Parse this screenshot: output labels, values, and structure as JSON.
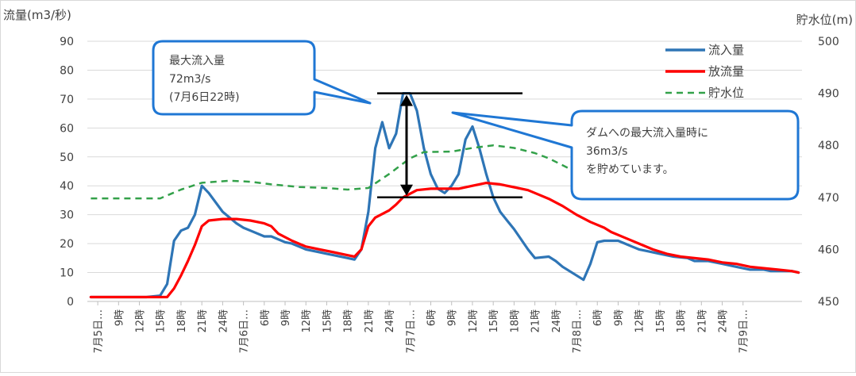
{
  "chart_data": {
    "type": "line",
    "y_left_label": "流量(m3/秒)",
    "y_right_label": "貯水位(m)",
    "y_left_range": [
      0,
      90
    ],
    "y_left_ticks": [
      "0",
      "10",
      "20",
      "30",
      "40",
      "50",
      "60",
      "70",
      "80",
      "90"
    ],
    "y_right_range": [
      450,
      500
    ],
    "y_right_ticks": [
      "450",
      "460",
      "470",
      "480",
      "490",
      "500"
    ],
    "x_tick_labels": [
      "7月5日…",
      "9時",
      "12時",
      "15時",
      "18時",
      "21時",
      "24時",
      "7月6日…",
      "6時",
      "9時",
      "12時",
      "15時",
      "18時",
      "21時",
      "24時",
      "7月7日…",
      "6時",
      "9時",
      "12時",
      "15時",
      "18時",
      "21時",
      "24時",
      "7月8日…",
      "6時",
      "9時",
      "12時",
      "15時",
      "18時",
      "21時",
      "24時",
      "7月9日…"
    ],
    "grid": true,
    "legend_position": "top-right",
    "series": [
      {
        "name": "流入量",
        "axis": "left",
        "color": "#2e75b6",
        "style": "solid",
        "points": [
          [
            0,
            1.5
          ],
          [
            8,
            1.5
          ],
          [
            10,
            2
          ],
          [
            11,
            6
          ],
          [
            12,
            21
          ],
          [
            13,
            24.5
          ],
          [
            14,
            25.5
          ],
          [
            15,
            30
          ],
          [
            16,
            40
          ],
          [
            17,
            37.5
          ],
          [
            19,
            31
          ],
          [
            21,
            27
          ],
          [
            22,
            25.5
          ],
          [
            23,
            24.5
          ],
          [
            25,
            22.5
          ],
          [
            26,
            22.5
          ],
          [
            28,
            20.5
          ],
          [
            29,
            20
          ],
          [
            31,
            18
          ],
          [
            33,
            17
          ],
          [
            34,
            16.5
          ],
          [
            35,
            16
          ],
          [
            37,
            15
          ],
          [
            38,
            14.5
          ],
          [
            39,
            18
          ],
          [
            40,
            31
          ],
          [
            41,
            53
          ],
          [
            42,
            62
          ],
          [
            43,
            53
          ],
          [
            44,
            58
          ],
          [
            45,
            72
          ],
          [
            46,
            72
          ],
          [
            47,
            66
          ],
          [
            48,
            53
          ],
          [
            49,
            44
          ],
          [
            50,
            39
          ],
          [
            51,
            37.5
          ],
          [
            52,
            40
          ],
          [
            53,
            44
          ],
          [
            54,
            56
          ],
          [
            55,
            60.5
          ],
          [
            56,
            53
          ],
          [
            57,
            44
          ],
          [
            58,
            36
          ],
          [
            59,
            31
          ],
          [
            60,
            28
          ],
          [
            61,
            25
          ],
          [
            63,
            18
          ],
          [
            64,
            15
          ],
          [
            66,
            15.5
          ],
          [
            67,
            14
          ],
          [
            68,
            12
          ],
          [
            70,
            9
          ],
          [
            71,
            7.5
          ],
          [
            72,
            13
          ],
          [
            73,
            20.5
          ],
          [
            74,
            21
          ],
          [
            76,
            21
          ],
          [
            77,
            20
          ],
          [
            78,
            19
          ],
          [
            79,
            18
          ],
          [
            80,
            17.5
          ],
          [
            82,
            16.5
          ],
          [
            84,
            15.5
          ],
          [
            86,
            15
          ],
          [
            87,
            14
          ],
          [
            89,
            14
          ],
          [
            91,
            13
          ],
          [
            93,
            12
          ],
          [
            95,
            11
          ],
          [
            97,
            11
          ],
          [
            98,
            10.5
          ],
          [
            101,
            10.5
          ],
          [
            102,
            10
          ]
        ]
      },
      {
        "name": "放流量",
        "axis": "left",
        "color": "#ff0000",
        "style": "solid",
        "points": [
          [
            0,
            1.5
          ],
          [
            11,
            1.5
          ],
          [
            12,
            4.5
          ],
          [
            13,
            9
          ],
          [
            14,
            14
          ],
          [
            15,
            19.5
          ],
          [
            16,
            26
          ],
          [
            17,
            28
          ],
          [
            19,
            28.5
          ],
          [
            21,
            28.5
          ],
          [
            23,
            28
          ],
          [
            25,
            27
          ],
          [
            26,
            26
          ],
          [
            27,
            23.5
          ],
          [
            29,
            21
          ],
          [
            31,
            19
          ],
          [
            33,
            18
          ],
          [
            35,
            17
          ],
          [
            37,
            16
          ],
          [
            38,
            15.5
          ],
          [
            39,
            18
          ],
          [
            40,
            26
          ],
          [
            41,
            29
          ],
          [
            43,
            31.5
          ],
          [
            44,
            33.5
          ],
          [
            45,
            36
          ],
          [
            47,
            38.5
          ],
          [
            49,
            39
          ],
          [
            53,
            39
          ],
          [
            55,
            40
          ],
          [
            57,
            41
          ],
          [
            59,
            40.5
          ],
          [
            61,
            39.5
          ],
          [
            63,
            38.5
          ],
          [
            64,
            37.5
          ],
          [
            66,
            35.5
          ],
          [
            68,
            33
          ],
          [
            70,
            30
          ],
          [
            72,
            27.5
          ],
          [
            74,
            25.5
          ],
          [
            75,
            24
          ],
          [
            77,
            22
          ],
          [
            79,
            20
          ],
          [
            81,
            18
          ],
          [
            83,
            16.5
          ],
          [
            85,
            15.5
          ],
          [
            87,
            15
          ],
          [
            89,
            14.5
          ],
          [
            91,
            13.5
          ],
          [
            93,
            13
          ],
          [
            95,
            12
          ],
          [
            97,
            11.5
          ],
          [
            99,
            11
          ],
          [
            101,
            10.5
          ],
          [
            102,
            10
          ]
        ]
      },
      {
        "name": "貯水位",
        "axis": "right",
        "color": "#33a14a",
        "style": "dashed",
        "points": [
          [
            0,
            469.8
          ],
          [
            10,
            469.8
          ],
          [
            13,
            471.5
          ],
          [
            16,
            472.8
          ],
          [
            20,
            473.2
          ],
          [
            23,
            473
          ],
          [
            26,
            472.5
          ],
          [
            30,
            472
          ],
          [
            34,
            471.8
          ],
          [
            37,
            471.5
          ],
          [
            40,
            471.8
          ],
          [
            43,
            474.5
          ],
          [
            46,
            477.5
          ],
          [
            48,
            478.7
          ],
          [
            52,
            478.8
          ],
          [
            55,
            479.5
          ],
          [
            58,
            480
          ],
          [
            61,
            479.5
          ],
          [
            64,
            478.5
          ],
          [
            66,
            477.5
          ],
          [
            69,
            475.5
          ],
          [
            71,
            474
          ]
        ]
      }
    ],
    "annotations": [
      {
        "lines": [
          "最大流入量",
          "72m3/s",
          "(7月6日22時)"
        ]
      },
      {
        "lines": [
          "ダムへの最大流入量時に",
          "36m3/s",
          "を貯めています。"
        ]
      }
    ]
  }
}
